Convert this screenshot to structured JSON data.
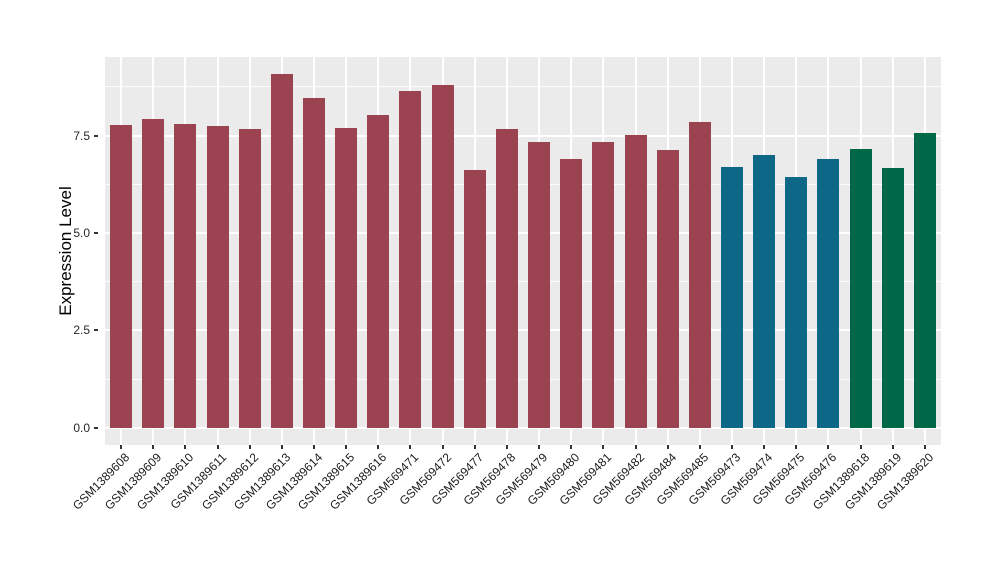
{
  "chart_data": {
    "type": "bar",
    "title": "",
    "xlabel": "",
    "ylabel": "Expression Level",
    "categories": [
      "GSM1389608",
      "GSM1389609",
      "GSM1389610",
      "GSM1389611",
      "GSM1389612",
      "GSM1389613",
      "GSM1389614",
      "GSM1389615",
      "GSM1389616",
      "GSM569471",
      "GSM569472",
      "GSM569477",
      "GSM569478",
      "GSM569479",
      "GSM569480",
      "GSM569481",
      "GSM569482",
      "GSM569484",
      "GSM569485",
      "GSM569473",
      "GSM569474",
      "GSM569475",
      "GSM569476",
      "GSM1389618",
      "GSM1389619",
      "GSM1389620"
    ],
    "values": [
      7.77,
      7.93,
      7.8,
      7.75,
      7.66,
      9.08,
      8.46,
      7.71,
      8.03,
      8.65,
      8.8,
      6.62,
      7.67,
      7.35,
      6.91,
      7.35,
      7.52,
      7.14,
      7.86,
      6.7,
      7.01,
      6.43,
      6.9,
      7.15,
      6.66,
      7.57
    ],
    "bar_colors": [
      "#9C4351",
      "#9C4351",
      "#9C4351",
      "#9C4351",
      "#9C4351",
      "#9C4351",
      "#9C4351",
      "#9C4351",
      "#9C4351",
      "#9C4351",
      "#9C4351",
      "#9C4351",
      "#9C4351",
      "#9C4351",
      "#9C4351",
      "#9C4351",
      "#9C4351",
      "#9C4351",
      "#9C4351",
      "#0D6787",
      "#0D6787",
      "#0D6787",
      "#0D6787",
      "#006747",
      "#006747",
      "#006747"
    ],
    "color_groups": [
      {
        "color": "#9C4351",
        "count": 19
      },
      {
        "color": "#0D6787",
        "count": 4
      },
      {
        "color": "#006747",
        "count": 3
      }
    ],
    "yticks": [
      0.0,
      2.5,
      5.0,
      7.5
    ],
    "ytick_labels": [
      "0.0",
      "2.5",
      "5.0",
      "7.5"
    ],
    "yticks_minor": [
      1.25,
      3.75,
      6.25,
      8.75
    ],
    "ylim": [
      -0.44,
      9.52
    ],
    "grid": "horizontal major+minor, vertical major at category centers",
    "legend": "none",
    "panel_bg": "#EBEBEB",
    "grid_color": "#FFFFFF",
    "tick_color": "#333333",
    "tick_label_color": "#262626",
    "axis_title_color": "#000000"
  }
}
